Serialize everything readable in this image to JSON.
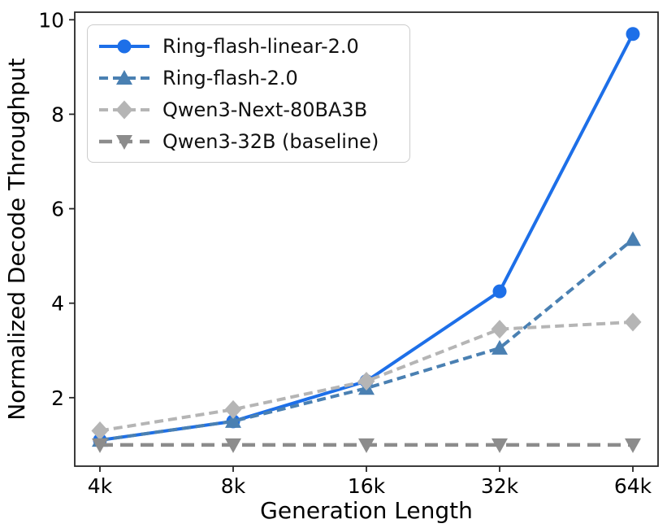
{
  "figure": {
    "background": "#ffffff",
    "axis_color": "#262626",
    "text_color": "#000000"
  },
  "chart_data": {
    "type": "line",
    "title": "",
    "xlabel": "Generation Length",
    "ylabel": "Normalized Decode Throughput",
    "categories": [
      "4k",
      "8k",
      "16k",
      "32k",
      "64k"
    ],
    "yticks": [
      2,
      4,
      6,
      8,
      10
    ],
    "ylim": [
      0.55,
      10.16
    ],
    "grid": false,
    "legend_position": "upper left",
    "series": [
      {
        "name": "Ring-flash-linear-2.0",
        "values": [
          1.1,
          1.5,
          2.35,
          4.25,
          9.7
        ],
        "color": "#1d6fe8",
        "line_style": "solid",
        "line_width": 4,
        "marker": "circle"
      },
      {
        "name": "Ring-flash-2.0",
        "values": [
          1.1,
          1.5,
          2.2,
          3.05,
          5.35
        ],
        "color": "#4a80b2",
        "line_style": "dashed",
        "line_width": 4,
        "marker": "triangle-up"
      },
      {
        "name": "Qwen3-Next-80BA3B",
        "values": [
          1.3,
          1.75,
          2.35,
          3.45,
          3.6
        ],
        "color": "#b5b5b5",
        "line_style": "dashed",
        "line_width": 4,
        "marker": "diamond"
      },
      {
        "name": "Qwen3-32B (baseline)",
        "values": [
          1.0,
          1.0,
          1.0,
          1.0,
          1.0
        ],
        "color": "#8c8c8c",
        "line_style": "dashed-long",
        "line_width": 4.5,
        "marker": "triangle-down"
      }
    ]
  }
}
